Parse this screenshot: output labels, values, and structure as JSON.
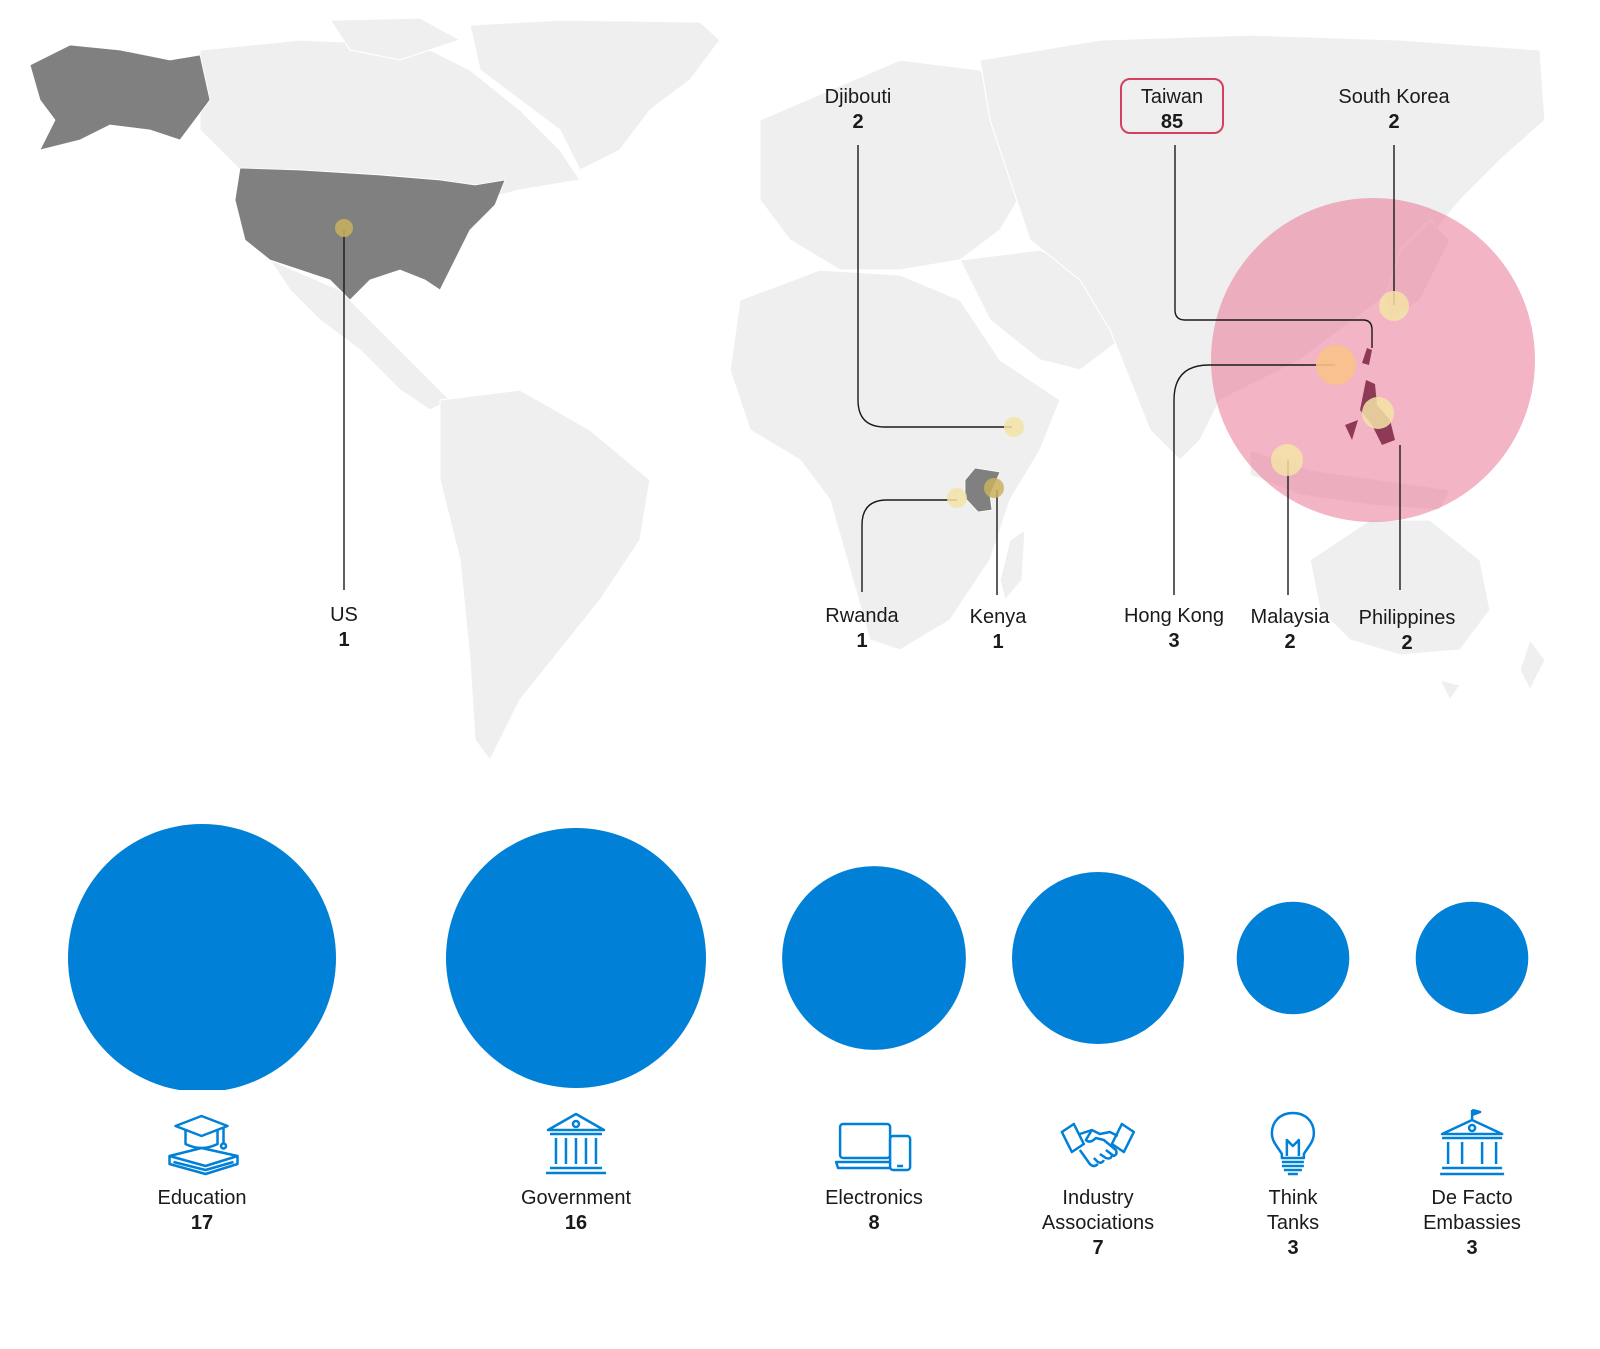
{
  "colors": {
    "land": "#efefef",
    "highlight_country": "#808080",
    "marker": "#c9b15e",
    "taiwan_circle": "#e97896",
    "taiwan_border": "#d6405f",
    "sector_bubble": "#0080d6",
    "icon_stroke": "#0080d6"
  },
  "map": {
    "locations": [
      {
        "id": "us",
        "name": "US",
        "count": "1"
      },
      {
        "id": "djibouti",
        "name": "Djibouti",
        "count": "2"
      },
      {
        "id": "rwanda",
        "name": "Rwanda",
        "count": "1"
      },
      {
        "id": "kenya",
        "name": "Kenya",
        "count": "1"
      },
      {
        "id": "taiwan",
        "name": "Taiwan",
        "count": "85"
      },
      {
        "id": "south_korea",
        "name": "South Korea",
        "count": "2"
      },
      {
        "id": "hong_kong",
        "name": "Hong Kong",
        "count": "3"
      },
      {
        "id": "malaysia",
        "name": "Malaysia",
        "count": "2"
      },
      {
        "id": "philippines",
        "name": "Philippines",
        "count": "2"
      }
    ]
  },
  "chart_data": {
    "type": "bubble",
    "categories": [
      "Education",
      "Government",
      "Electronics",
      "Industry Associations",
      "Think Tanks",
      "De Facto Embassies"
    ],
    "values": [
      17,
      16,
      8,
      7,
      3,
      3
    ]
  },
  "sectors": [
    {
      "label": "Education",
      "count": "17",
      "icon": "graduation-cap-books-icon"
    },
    {
      "label": "Government",
      "count": "16",
      "icon": "government-building-icon"
    },
    {
      "label": "Electronics",
      "count": "8",
      "icon": "laptop-phone-icon"
    },
    {
      "label": "Industry\nAssociations",
      "count": "7",
      "icon": "handshake-icon"
    },
    {
      "label": "Think\nTanks",
      "count": "3",
      "icon": "lightbulb-icon"
    },
    {
      "label": "De Facto\nEmbassies",
      "count": "3",
      "icon": "embassy-building-flag-icon"
    }
  ]
}
